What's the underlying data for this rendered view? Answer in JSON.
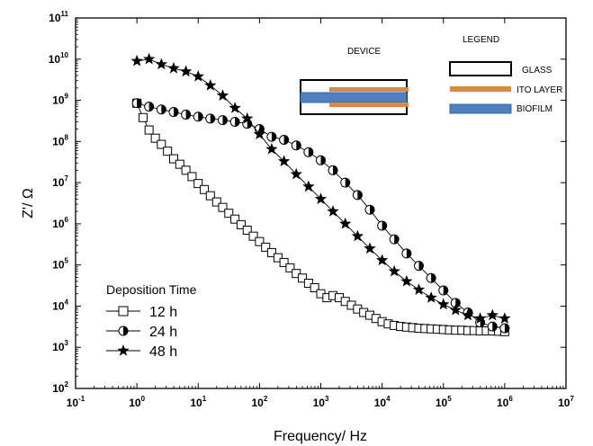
{
  "chart_data": {
    "type": "scatter",
    "title": "",
    "xlabel": "Frequency/ Hz",
    "ylabel": "Z'/ Ω",
    "x_scale": "log",
    "y_scale": "log",
    "xlim": [
      0.1,
      10000000
    ],
    "ylim": [
      100,
      100000000000
    ],
    "x_ticks": [
      {
        "base": "10",
        "exp": "-1"
      },
      {
        "base": "10",
        "exp": "0"
      },
      {
        "base": "10",
        "exp": "1"
      },
      {
        "base": "10",
        "exp": "2"
      },
      {
        "base": "10",
        "exp": "3"
      },
      {
        "base": "10",
        "exp": "4"
      },
      {
        "base": "10",
        "exp": "5"
      },
      {
        "base": "10",
        "exp": "6"
      },
      {
        "base": "10",
        "exp": "7"
      }
    ],
    "y_ticks": [
      {
        "base": "10",
        "exp": "2"
      },
      {
        "base": "10",
        "exp": "3"
      },
      {
        "base": "10",
        "exp": "4"
      },
      {
        "base": "10",
        "exp": "5"
      },
      {
        "base": "10",
        "exp": "6"
      },
      {
        "base": "10",
        "exp": "7"
      },
      {
        "base": "10",
        "exp": "8"
      },
      {
        "base": "10",
        "exp": "9"
      },
      {
        "base": "10",
        "exp": "10"
      },
      {
        "base": "10",
        "exp": "11"
      }
    ],
    "grid": false,
    "legend": {
      "title": "Deposition Time",
      "placement": "bottom-left",
      "entries": [
        "12 h",
        "24 h",
        "48 h"
      ]
    },
    "series": [
      {
        "name": "12 h",
        "marker": "open-square",
        "x": [
          1.0,
          1.26,
          1.58,
          2.0,
          2.51,
          3.16,
          3.98,
          5.01,
          6.31,
          7.94,
          10.0,
          12.6,
          15.8,
          20.0,
          25.1,
          31.6,
          39.8,
          50.1,
          63.1,
          79.4,
          100,
          126,
          158,
          200,
          251,
          316,
          398,
          501,
          631,
          794,
          1000,
          1260,
          1580,
          2000,
          2510,
          3160,
          3980,
          5010,
          6310,
          7940,
          10000,
          12600,
          15800,
          20000,
          25100,
          31600,
          39800,
          50100,
          63100,
          79400,
          100000,
          126000,
          158000,
          200000,
          251000,
          316000,
          398000,
          501000,
          631000,
          794000,
          1000000
        ],
        "y": [
          850000000,
          380000000,
          190000000,
          120000000,
          85000000,
          58000000,
          38000000,
          28000000,
          20000000,
          14000000,
          9500000,
          6800000,
          4800000,
          3400000,
          2500000,
          1800000,
          1300000,
          950000,
          700000,
          500000,
          370000,
          270000,
          200000,
          150000,
          115000,
          85000,
          62000,
          48000,
          36000,
          28000,
          20000,
          16000,
          18000,
          16000,
          13000,
          10500,
          8500,
          7000,
          6000,
          5000,
          4200,
          3700,
          3400,
          3200,
          3100,
          3000,
          2900,
          2850,
          2800,
          2750,
          2700,
          2650,
          2600,
          2600,
          2550,
          2550,
          2500,
          2500,
          2500,
          2450,
          2400
        ]
      },
      {
        "name": "24 h",
        "marker": "half-filled-circle",
        "x": [
          1.0,
          1.58,
          2.51,
          3.98,
          6.31,
          10.0,
          15.8,
          25.1,
          39.8,
          63.1,
          100,
          158,
          251,
          398,
          631,
          1000,
          1580,
          2510,
          3980,
          6310,
          10000,
          15800,
          25100,
          39800,
          63100,
          100000,
          158000,
          251000,
          398000,
          631000,
          1000000
        ],
        "y": [
          850000000,
          700000000,
          600000000,
          520000000,
          450000000,
          400000000,
          360000000,
          330000000,
          300000000,
          270000000,
          200000000,
          130000000,
          110000000,
          80000000,
          55000000,
          35000000,
          20000000,
          10000000,
          5000000,
          2200000,
          900000,
          420000,
          190000,
          95000,
          48000,
          24000,
          12000,
          7000,
          4000,
          3200,
          2900
        ]
      },
      {
        "name": "48 h",
        "marker": "filled-star",
        "x": [
          1.0,
          1.58,
          2.51,
          3.98,
          6.31,
          10.0,
          15.8,
          25.1,
          39.8,
          63.1,
          100,
          158,
          251,
          398,
          631,
          1000,
          1580,
          2510,
          3980,
          6310,
          10000,
          15800,
          25100,
          39800,
          63100,
          100000,
          158000,
          251000,
          398000,
          631000,
          1000000
        ],
        "y": [
          9000000000,
          10000000000,
          7500000000,
          6000000000,
          5000000000,
          3800000000,
          2300000000,
          1300000000,
          650000000,
          360000000,
          150000000,
          65000000,
          33000000,
          16000000,
          8000000,
          4000000,
          2000000,
          1000000,
          500000,
          250000,
          130000,
          70000,
          40000,
          25000,
          16000,
          11000,
          8000,
          6000,
          5000,
          6000,
          5000
        ]
      }
    ],
    "inset": {
      "device_label": "DEVICE",
      "legend_label": "LEGEND",
      "items": [
        {
          "label": "GLASS",
          "color": "#ffffff"
        },
        {
          "label": "ITO LAYER",
          "color": "#d88a48"
        },
        {
          "label": "BIOFILM",
          "color": "#4f7fbf"
        }
      ]
    }
  }
}
